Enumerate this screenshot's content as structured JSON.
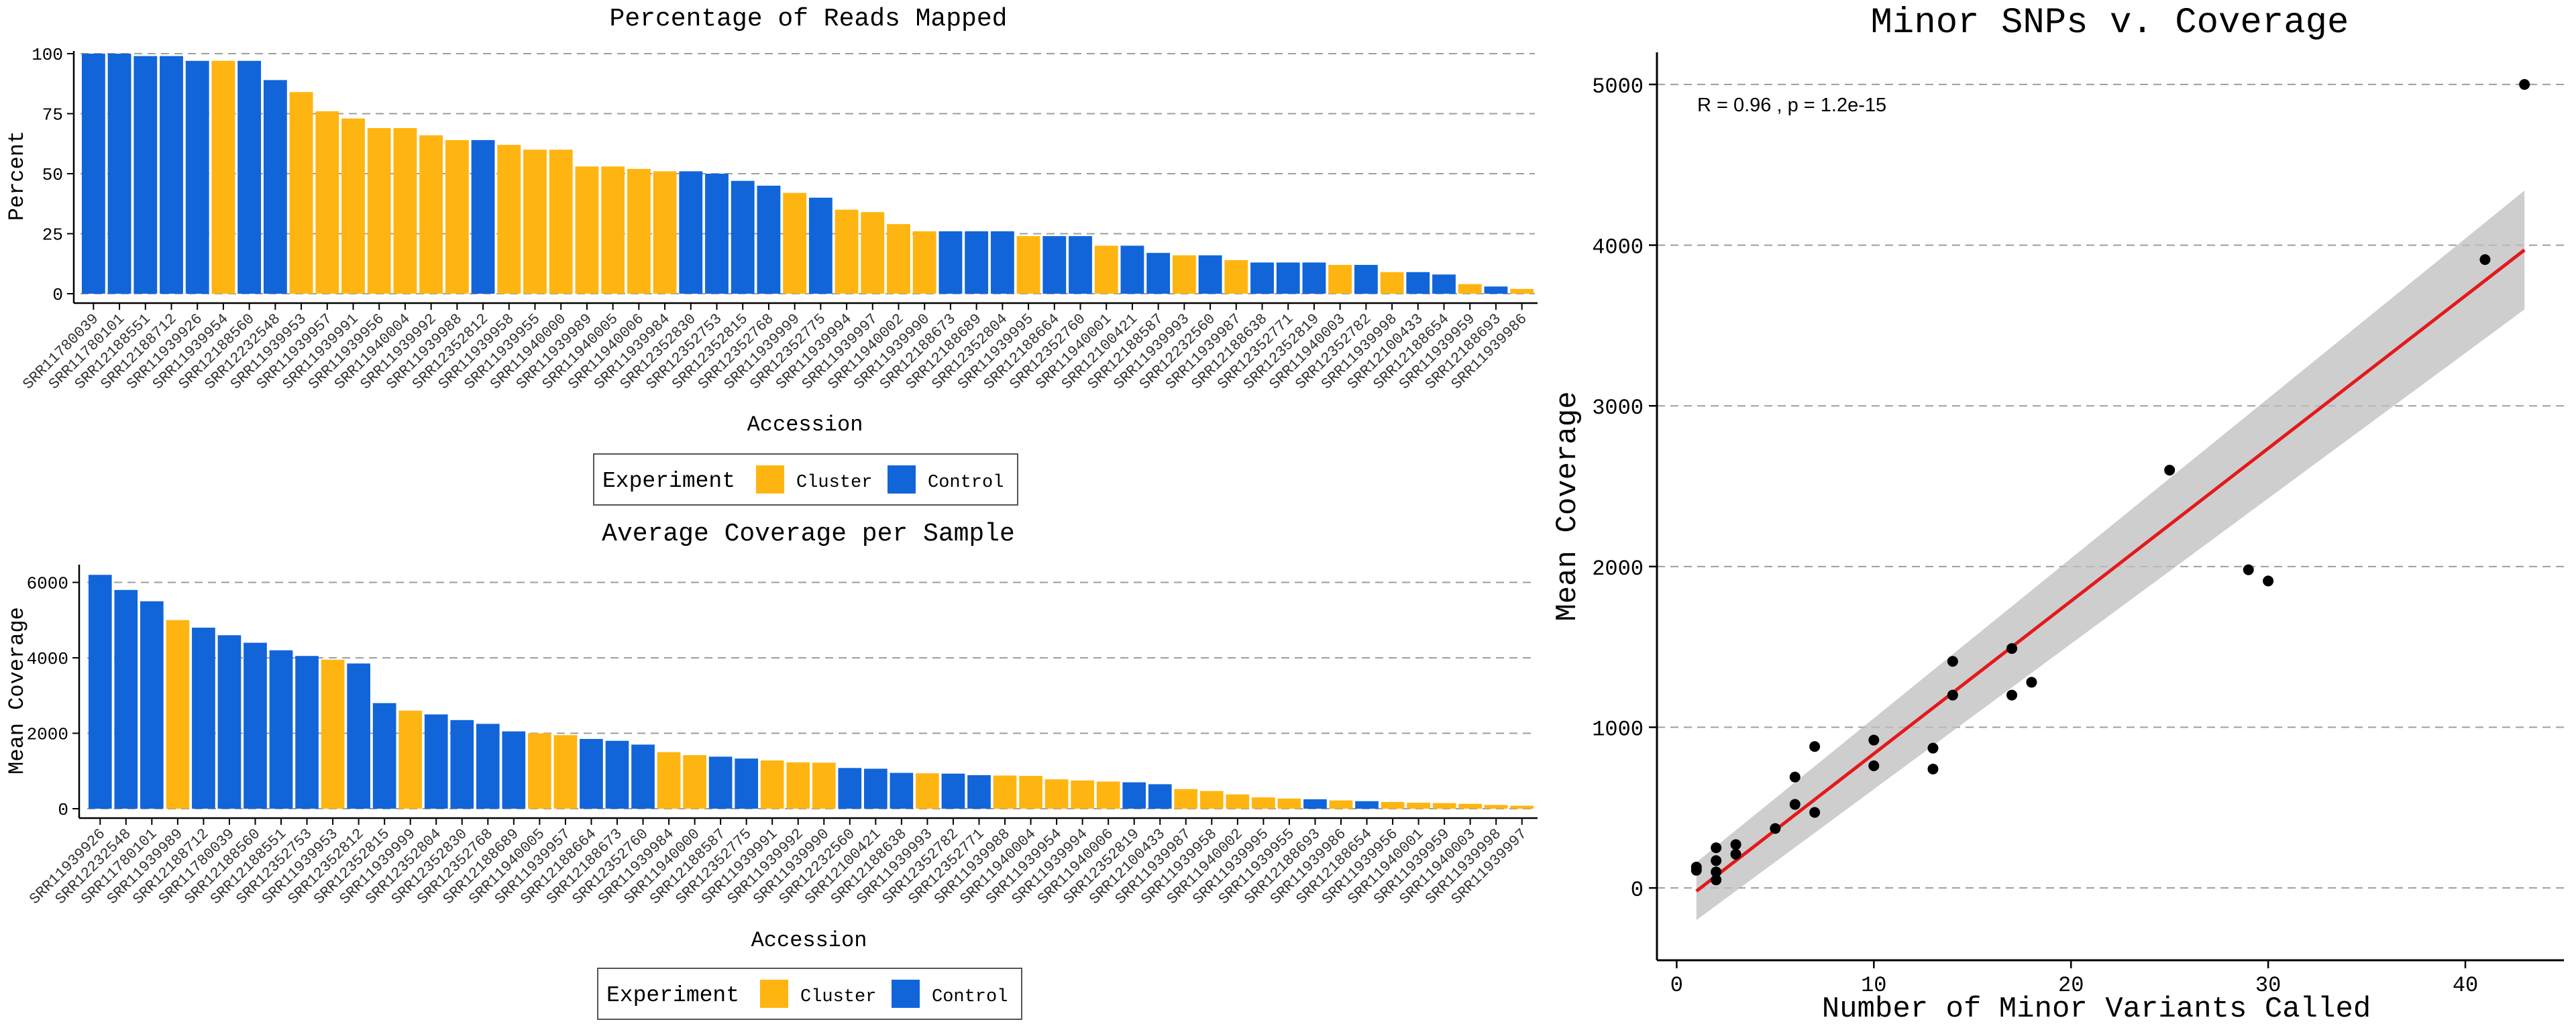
{
  "chart_data": [
    {
      "type": "bar",
      "title": "Percentage of Reads Mapped",
      "xlabel": "Accession",
      "ylabel": "Percent",
      "ylim": [
        0,
        100
      ],
      "yticks": [
        0,
        25,
        50,
        75,
        100
      ],
      "grid": "horizontal-dashed",
      "legend": {
        "title": "Experiment",
        "placement": "bottom",
        "entries": [
          "Cluster",
          "Control"
        ]
      },
      "colors": {
        "Cluster": "#FFB511",
        "Control": "#1165D9"
      },
      "categories": [
        "SRR11780039",
        "SRR11780101",
        "SRR12188551",
        "SRR12188712",
        "SRR11939926",
        "SRR11939954",
        "SRR12188560",
        "SRR12232548",
        "SRR11939953",
        "SRR11939957",
        "SRR11939991",
        "SRR11939956",
        "SRR11940004",
        "SRR11939992",
        "SRR11939988",
        "SRR12352812",
        "SRR11939958",
        "SRR11939955",
        "SRR11940000",
        "SRR11939989",
        "SRR11940005",
        "SRR11940006",
        "SRR11939984",
        "SRR12352830",
        "SRR12352753",
        "SRR12352815",
        "SRR12352768",
        "SRR11939999",
        "SRR12352775",
        "SRR11939994",
        "SRR11939997",
        "SRR11940002",
        "SRR11939990",
        "SRR12188673",
        "SRR12188689",
        "SRR12352804",
        "SRR11939995",
        "SRR12188664",
        "SRR12352760",
        "SRR11940001",
        "SRR12100421",
        "SRR12188587",
        "SRR11939993",
        "SRR12232560",
        "SRR11939987",
        "SRR12188638",
        "SRR12352771",
        "SRR12352819",
        "SRR11940003",
        "SRR12352782",
        "SRR11939998",
        "SRR12100433",
        "SRR12188654",
        "SRR11939959",
        "SRR12188693",
        "SRR11939986"
      ],
      "groups": [
        "Control",
        "Control",
        "Control",
        "Control",
        "Control",
        "Cluster",
        "Control",
        "Control",
        "Cluster",
        "Cluster",
        "Cluster",
        "Cluster",
        "Cluster",
        "Cluster",
        "Cluster",
        "Control",
        "Cluster",
        "Cluster",
        "Cluster",
        "Cluster",
        "Cluster",
        "Cluster",
        "Cluster",
        "Control",
        "Control",
        "Control",
        "Control",
        "Cluster",
        "Control",
        "Cluster",
        "Cluster",
        "Cluster",
        "Cluster",
        "Control",
        "Control",
        "Control",
        "Cluster",
        "Control",
        "Control",
        "Cluster",
        "Control",
        "Control",
        "Cluster",
        "Control",
        "Cluster",
        "Control",
        "Control",
        "Control",
        "Cluster",
        "Control",
        "Cluster",
        "Control",
        "Control",
        "Cluster",
        "Control",
        "Cluster"
      ],
      "values": [
        100,
        100,
        99,
        99,
        97,
        97,
        97,
        89,
        84,
        76,
        73,
        69,
        69,
        66,
        64,
        64,
        62,
        60,
        60,
        53,
        53,
        52,
        51,
        51,
        50,
        47,
        45,
        42,
        40,
        35,
        34,
        29,
        26,
        26,
        26,
        26,
        24,
        24,
        24,
        20,
        20,
        17,
        16,
        16,
        14,
        13,
        13,
        13,
        12,
        12,
        9,
        9,
        8,
        4,
        3,
        2
      ]
    },
    {
      "type": "bar",
      "title": "Average Coverage per Sample",
      "xlabel": "Accession",
      "ylabel": "Mean Coverage",
      "ylim": [
        0,
        6400
      ],
      "yticks": [
        0,
        2000,
        4000,
        6000
      ],
      "grid": "horizontal-dashed",
      "legend": {
        "title": "Experiment",
        "placement": "bottom",
        "entries": [
          "Cluster",
          "Control"
        ]
      },
      "colors": {
        "Cluster": "#FFB511",
        "Control": "#1165D9"
      },
      "categories": [
        "SRR11939926",
        "SRR12232548",
        "SRR11780101",
        "SRR11939989",
        "SRR12188712",
        "SRR11780039",
        "SRR12188560",
        "SRR12188551",
        "SRR12352753",
        "SRR11939953",
        "SRR12352812",
        "SRR12352815",
        "SRR11939999",
        "SRR12352804",
        "SRR12352830",
        "SRR12352768",
        "SRR12188689",
        "SRR11940005",
        "SRR11939957",
        "SRR12188664",
        "SRR12188673",
        "SRR12352760",
        "SRR11939984",
        "SRR11940000",
        "SRR12188587",
        "SRR12352775",
        "SRR11939991",
        "SRR11939992",
        "SRR11939990",
        "SRR12232560",
        "SRR12100421",
        "SRR12188638",
        "SRR11939993",
        "SRR12352782",
        "SRR12352771",
        "SRR11939988",
        "SRR11940004",
        "SRR11939954",
        "SRR11939994",
        "SRR11940006",
        "SRR12352819",
        "SRR12100433",
        "SRR11939987",
        "SRR11939958",
        "SRR11940002",
        "SRR11939995",
        "SRR11939955",
        "SRR12188693",
        "SRR11939986",
        "SRR12188654",
        "SRR11939956",
        "SRR11940001",
        "SRR11939959",
        "SRR11940003",
        "SRR11939998",
        "SRR11939997"
      ],
      "groups": [
        "Control",
        "Control",
        "Control",
        "Cluster",
        "Control",
        "Control",
        "Control",
        "Control",
        "Control",
        "Cluster",
        "Control",
        "Control",
        "Cluster",
        "Control",
        "Control",
        "Control",
        "Control",
        "Cluster",
        "Cluster",
        "Control",
        "Control",
        "Control",
        "Cluster",
        "Cluster",
        "Control",
        "Control",
        "Cluster",
        "Cluster",
        "Cluster",
        "Control",
        "Control",
        "Control",
        "Cluster",
        "Control",
        "Control",
        "Cluster",
        "Cluster",
        "Cluster",
        "Cluster",
        "Cluster",
        "Control",
        "Control",
        "Cluster",
        "Cluster",
        "Cluster",
        "Cluster",
        "Cluster",
        "Control",
        "Cluster",
        "Control",
        "Cluster",
        "Cluster",
        "Cluster",
        "Cluster",
        "Cluster",
        "Cluster"
      ],
      "values": [
        6200,
        5800,
        5500,
        5000,
        4800,
        4600,
        4400,
        4200,
        4050,
        3950,
        3850,
        2800,
        2600,
        2500,
        2350,
        2250,
        2050,
        2000,
        1950,
        1850,
        1800,
        1700,
        1500,
        1420,
        1380,
        1330,
        1280,
        1230,
        1220,
        1080,
        1060,
        950,
        940,
        930,
        890,
        880,
        870,
        780,
        750,
        720,
        700,
        650,
        520,
        470,
        380,
        300,
        270,
        250,
        220,
        200,
        180,
        160,
        150,
        130,
        100,
        80
      ]
    },
    {
      "type": "scatter",
      "title": "Minor SNPs v. Coverage",
      "xlabel": "Number of Minor Variants Called",
      "ylabel": "Mean Coverage",
      "xlim": [
        -1,
        45
      ],
      "ylim": [
        -450,
        5200
      ],
      "xticks": [
        0,
        10,
        20,
        30,
        40
      ],
      "yticks": [
        0,
        1000,
        2000,
        3000,
        4000,
        5000
      ],
      "grid": "horizontal-dashed",
      "annotation": "R = 0.96 , p = 1.2e-15",
      "regression": {
        "x": [
          1,
          43
        ],
        "y": [
          -20,
          3970
        ],
        "ci_lower": [
          -200,
          3600
        ],
        "ci_upper": [
          160,
          4340
        ],
        "line_color": "#E3191B",
        "band_color": "#BEBEBE"
      },
      "points": {
        "x": [
          1,
          1,
          2,
          2,
          2,
          2,
          3,
          3,
          5,
          6,
          6,
          7,
          7,
          10,
          10,
          13,
          13,
          14,
          14,
          17,
          17,
          18,
          25,
          29,
          30,
          41,
          43
        ],
        "y": [
          110,
          130,
          50,
          100,
          170,
          250,
          210,
          270,
          370,
          520,
          690,
          470,
          880,
          760,
          920,
          740,
          870,
          1200,
          1410,
          1200,
          1490,
          1280,
          2600,
          1980,
          1910,
          3910,
          5000
        ]
      }
    }
  ]
}
